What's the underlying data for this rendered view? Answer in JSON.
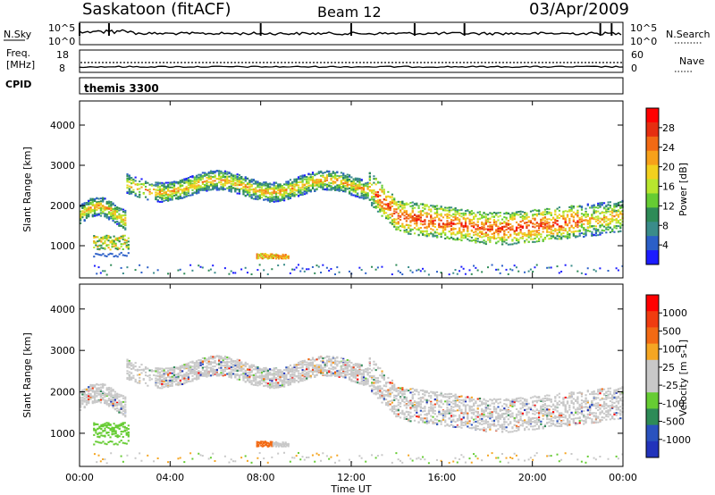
{
  "header": {
    "station": "Saskatoon (fitACF)",
    "beam": "Beam 12",
    "date": "03/Apr/2009"
  },
  "noise_panel": {
    "left_label": "N.Sky",
    "right_label": "N.Search",
    "ticks_top": "10^5",
    "ticks_bottom": "10^0"
  },
  "freq_panel": {
    "left_label_1": "Freq.",
    "left_label_2": "[MHz]",
    "left_tick_top": "18",
    "left_tick_bottom": "8",
    "right_tick_top": "60",
    "right_tick_bottom": "0",
    "right_label": "Nave"
  },
  "cpid_panel": {
    "label": "CPID",
    "value": "themis 3300"
  },
  "chart_data": [
    {
      "type": "heatmap",
      "name": "power",
      "ylabel": "Slant Range [km]",
      "ylim": [
        200,
        4600
      ],
      "yticks": [
        "1000",
        "2000",
        "3000",
        "4000"
      ],
      "xlim": [
        0,
        24
      ],
      "colorbar": {
        "label": "Power [dB]",
        "ticks": [
          "4",
          "8",
          "12",
          "16",
          "20",
          "24",
          "28"
        ],
        "colors": [
          "#1c1cff",
          "#2b5fc8",
          "#3a8c8a",
          "#2e8b57",
          "#66cc33",
          "#b8e62e",
          "#f2d01e",
          "#f7a11a",
          "#f26a14",
          "#e62e10",
          "#ff0000"
        ]
      }
    },
    {
      "type": "heatmap",
      "name": "velocity",
      "ylabel": "Slant Range [km]",
      "ylim": [
        200,
        4600
      ],
      "yticks": [
        "1000",
        "2000",
        "3000",
        "4000"
      ],
      "xlim": [
        0,
        24
      ],
      "colorbar": {
        "label": "Velocity [m s-1]",
        "ticks": [
          "1000",
          "500",
          "100",
          "25",
          "-25",
          "-100",
          "-500",
          "-1000"
        ],
        "colors": [
          "#2233bb",
          "#2a52be",
          "#2e8b57",
          "#66cc33",
          "#c8c8c8",
          "#c8c8c8",
          "#f5a623",
          "#f26a14",
          "#f03c10",
          "#ff0000"
        ]
      }
    }
  ],
  "xaxis": {
    "label": "Time UT",
    "ticks": [
      "00:00",
      "04:00",
      "08:00",
      "12:00",
      "16:00",
      "20:00",
      "00:00"
    ]
  }
}
